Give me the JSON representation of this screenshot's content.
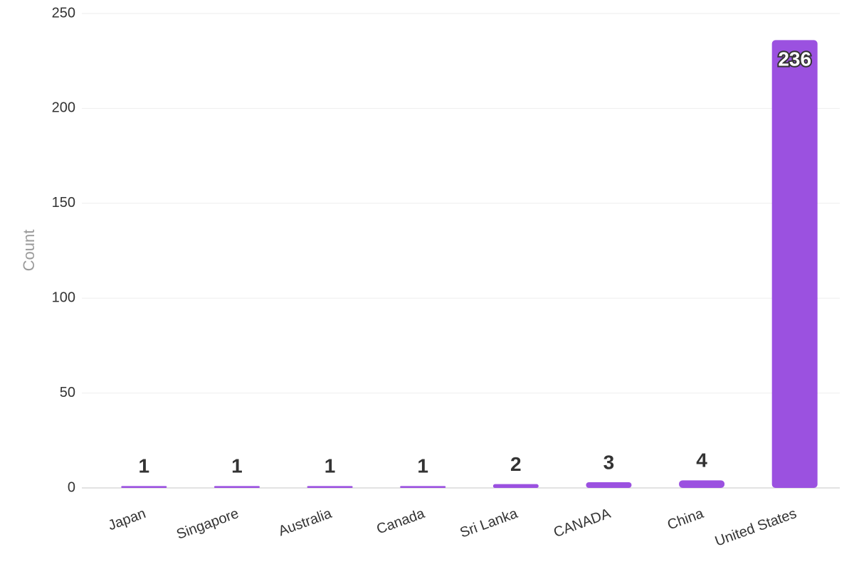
{
  "chart_data": {
    "type": "bar",
    "y_label": "Count",
    "categories": [
      "Japan",
      "Singapore",
      "Australia",
      "Canada",
      "Sri Lanka",
      "CANADA",
      "China",
      "United States"
    ],
    "values": [
      1,
      1,
      1,
      1,
      2,
      3,
      4,
      236
    ],
    "color": "#9b51e0",
    "ylim": [
      0,
      250
    ],
    "yticks": [
      0,
      50,
      100,
      150,
      200,
      250
    ],
    "grid": true
  }
}
